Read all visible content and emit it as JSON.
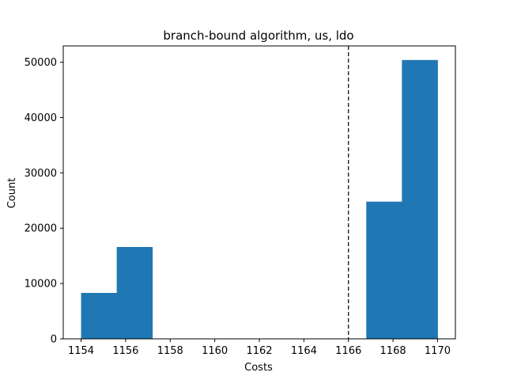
{
  "chart_data": {
    "type": "bar",
    "title": "branch-bound algorithm, us, ldo",
    "xlabel": "Costs",
    "ylabel": "Count",
    "xlim": [
      1153.2,
      1170.8
    ],
    "ylim": [
      0,
      52950
    ],
    "bar_color": "#1f77b4",
    "bins": [
      {
        "x0": 1154.0,
        "x1": 1155.6,
        "value": 8300
      },
      {
        "x0": 1155.6,
        "x1": 1157.2,
        "value": 16600
      },
      {
        "x0": 1157.2,
        "x1": 1158.8,
        "value": 0
      },
      {
        "x0": 1158.8,
        "x1": 1160.4,
        "value": 0
      },
      {
        "x0": 1160.4,
        "x1": 1162.0,
        "value": 0
      },
      {
        "x0": 1162.0,
        "x1": 1163.6,
        "value": 0
      },
      {
        "x0": 1163.6,
        "x1": 1165.2,
        "value": 0
      },
      {
        "x0": 1165.2,
        "x1": 1166.8,
        "value": 0
      },
      {
        "x0": 1166.8,
        "x1": 1168.4,
        "value": 24800
      },
      {
        "x0": 1168.4,
        "x1": 1170.0,
        "value": 50400
      }
    ],
    "vline": {
      "x": 1166.0,
      "style": "dashed",
      "color": "#000000"
    },
    "xticks": [
      1154,
      1156,
      1158,
      1160,
      1162,
      1164,
      1166,
      1168,
      1170
    ],
    "yticks": [
      0,
      10000,
      20000,
      30000,
      40000,
      50000
    ],
    "grid": false,
    "legend": "none"
  }
}
